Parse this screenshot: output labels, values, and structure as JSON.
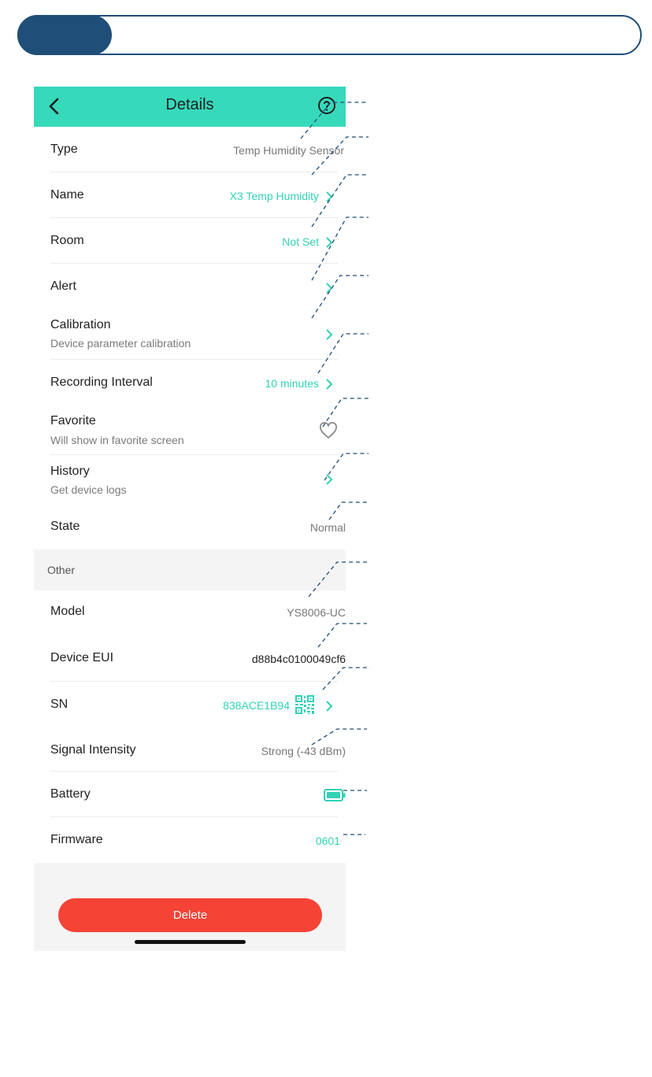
{
  "header": {
    "title": "Details"
  },
  "rows": [
    {
      "label": "Type",
      "value": "Temp Humidity Sensor"
    },
    {
      "label": "Name",
      "value": "X3 Temp Humidity"
    },
    {
      "label": "Room",
      "value": "Not Set"
    },
    {
      "label": "Alert"
    },
    {
      "label": "Calibration",
      "subtitle": "Device parameter calibration"
    },
    {
      "label": "Recording Interval",
      "value": "10 minutes"
    },
    {
      "label": "Favorite",
      "subtitle": "Will show in favorite screen"
    },
    {
      "label": "History",
      "subtitle": "Get device logs"
    },
    {
      "label": "State",
      "value": "Normal"
    }
  ],
  "other": {
    "section_title": "Other",
    "rows": [
      {
        "label": "Model",
        "value": "YS8006-UC"
      },
      {
        "label": "Device EUI",
        "value": "d88b4c0100049cf6"
      },
      {
        "label": "SN",
        "value": "838ACE1B94"
      },
      {
        "label": "Signal Intensity",
        "value": "Strong (-43 dBm)"
      },
      {
        "label": "Battery",
        "icon": "battery-full-icon"
      },
      {
        "label": "Firmware",
        "value": "0601"
      }
    ]
  },
  "delete_label": "Delete",
  "icons": {
    "back": "chevron-left-icon",
    "help": "help-circle-icon",
    "favorite": "heart-outline-icon",
    "qr": "qr-code-icon"
  },
  "colors": {
    "accent": "#37d9bb",
    "teal_text": "#32d2b5",
    "delete": "#f54336",
    "banner": "#1f4e79"
  }
}
